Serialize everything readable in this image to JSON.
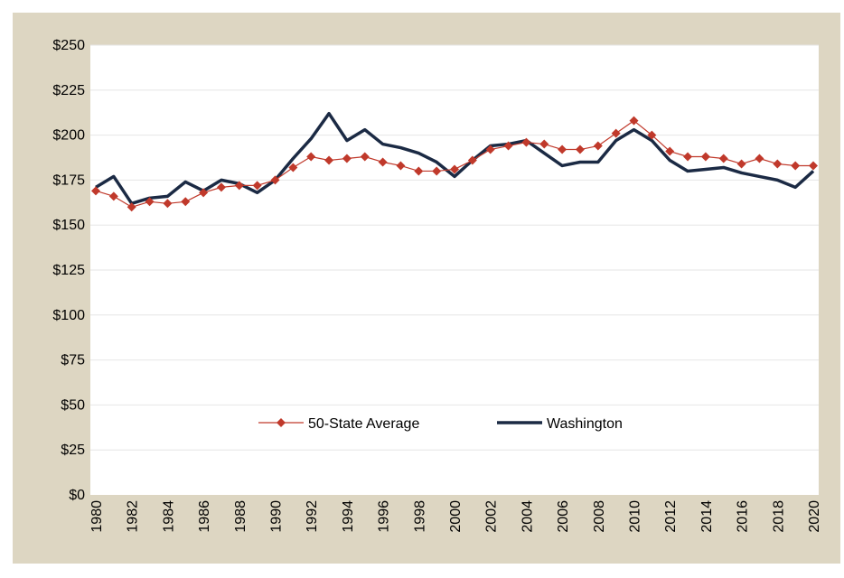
{
  "chart_data": {
    "type": "line",
    "title": "",
    "xlabel": "",
    "ylabel": "",
    "ylim": [
      0,
      250
    ],
    "y_ticks": [
      "$0",
      "$25",
      "$50",
      "$75",
      "$100",
      "$125",
      "$150",
      "$175",
      "$200",
      "$225",
      "$250"
    ],
    "y_tick_values": [
      0,
      25,
      50,
      75,
      100,
      125,
      150,
      175,
      200,
      225,
      250
    ],
    "x": [
      1980,
      1981,
      1982,
      1983,
      1984,
      1985,
      1986,
      1987,
      1988,
      1989,
      1990,
      1991,
      1992,
      1993,
      1994,
      1995,
      1996,
      1997,
      1998,
      1999,
      2000,
      2001,
      2002,
      2003,
      2004,
      2005,
      2006,
      2007,
      2008,
      2009,
      2010,
      2011,
      2012,
      2013,
      2014,
      2015,
      2016,
      2017,
      2018,
      2019,
      2020
    ],
    "x_ticks": [
      "1980",
      "1982",
      "1984",
      "1986",
      "1988",
      "1990",
      "1992",
      "1994",
      "1996",
      "1998",
      "2000",
      "2002",
      "2004",
      "2006",
      "2008",
      "2010",
      "2012",
      "2014",
      "2016",
      "2018",
      "2020"
    ],
    "grid": "horizontal",
    "legend": "bottom-center",
    "series": [
      {
        "name": "50-State Average",
        "color": "#c0392b",
        "marker": "diamond",
        "values": [
          169,
          166,
          160,
          163,
          162,
          163,
          168,
          171,
          172,
          172,
          175,
          182,
          188,
          186,
          187,
          188,
          185,
          183,
          180,
          180,
          181,
          186,
          192,
          194,
          196,
          195,
          192,
          192,
          194,
          201,
          208,
          200,
          191,
          188,
          188,
          187,
          184,
          187,
          184,
          183,
          183
        ]
      },
      {
        "name": "Washington",
        "color": "#1b2a44",
        "marker": "none",
        "values": [
          171,
          177,
          162,
          165,
          166,
          174,
          169,
          175,
          173,
          168,
          175,
          187,
          198,
          212,
          197,
          203,
          195,
          193,
          190,
          185,
          177,
          186,
          194,
          195,
          197,
          190,
          183,
          185,
          185,
          197,
          203,
          197,
          186,
          180,
          181,
          182,
          179,
          177,
          175,
          171,
          180
        ]
      }
    ]
  }
}
